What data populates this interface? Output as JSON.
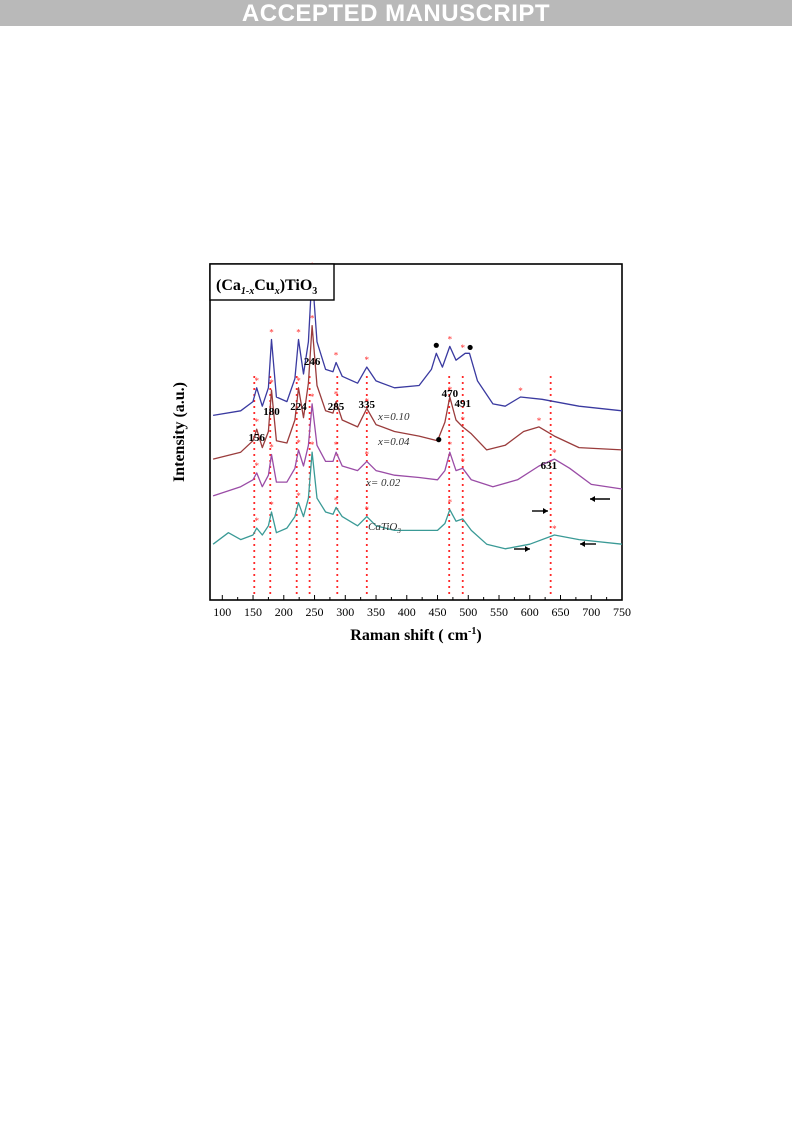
{
  "header": {
    "banner": "ACCEPTED MANUSCRIPT"
  },
  "chart_data": {
    "type": "line",
    "title": "",
    "inset_label": {
      "main1": "(Ca",
      "sub1": "1-x",
      "main2": "Cu",
      "sub2": "x",
      "main3": ")TiO",
      "sub3": "3"
    },
    "xlabel": "Raman shift ( cm",
    "xlabel_sup": "-1",
    "xlabel_end": ")",
    "ylabel": "Intensity (a.u.)",
    "xlim": [
      80,
      750
    ],
    "xticks": [
      100,
      150,
      200,
      250,
      300,
      350,
      400,
      450,
      500,
      550,
      600,
      650,
      700,
      750
    ],
    "grid": false,
    "series": [
      {
        "name": "x=0.10",
        "color": "#3a3aa0",
        "offset": 0.62,
        "points": [
          [
            85,
            0.0
          ],
          [
            130,
            0.02
          ],
          [
            150,
            0.06
          ],
          [
            156,
            0.12
          ],
          [
            165,
            0.04
          ],
          [
            175,
            0.12
          ],
          [
            180,
            0.33
          ],
          [
            188,
            0.08
          ],
          [
            205,
            0.06
          ],
          [
            218,
            0.16
          ],
          [
            224,
            0.33
          ],
          [
            232,
            0.18
          ],
          [
            240,
            0.32
          ],
          [
            246,
            0.62
          ],
          [
            254,
            0.32
          ],
          [
            268,
            0.2
          ],
          [
            280,
            0.19
          ],
          [
            285,
            0.23
          ],
          [
            295,
            0.17
          ],
          [
            320,
            0.14
          ],
          [
            335,
            0.21
          ],
          [
            350,
            0.15
          ],
          [
            380,
            0.12
          ],
          [
            420,
            0.13
          ],
          [
            440,
            0.2
          ],
          [
            448,
            0.27
          ],
          [
            458,
            0.21
          ],
          [
            470,
            0.3
          ],
          [
            480,
            0.24
          ],
          [
            495,
            0.27
          ],
          [
            502,
            0.27
          ],
          [
            515,
            0.15
          ],
          [
            540,
            0.05
          ],
          [
            560,
            0.04
          ],
          [
            585,
            0.08
          ],
          [
            620,
            0.07
          ],
          [
            680,
            0.04
          ],
          [
            750,
            0.02
          ]
        ]
      },
      {
        "name": "x=0.04",
        "color": "#9a3c3c",
        "offset": 0.43,
        "points": [
          [
            85,
            0.0
          ],
          [
            130,
            0.03
          ],
          [
            150,
            0.08
          ],
          [
            156,
            0.13
          ],
          [
            165,
            0.05
          ],
          [
            175,
            0.12
          ],
          [
            180,
            0.3
          ],
          [
            188,
            0.08
          ],
          [
            205,
            0.07
          ],
          [
            218,
            0.17
          ],
          [
            224,
            0.31
          ],
          [
            232,
            0.18
          ],
          [
            240,
            0.33
          ],
          [
            246,
            0.58
          ],
          [
            254,
            0.32
          ],
          [
            268,
            0.21
          ],
          [
            280,
            0.2
          ],
          [
            285,
            0.25
          ],
          [
            295,
            0.17
          ],
          [
            320,
            0.14
          ],
          [
            335,
            0.22
          ],
          [
            350,
            0.15
          ],
          [
            380,
            0.12
          ],
          [
            420,
            0.1
          ],
          [
            450,
            0.08
          ],
          [
            462,
            0.16
          ],
          [
            470,
            0.27
          ],
          [
            480,
            0.17
          ],
          [
            491,
            0.14
          ],
          [
            505,
            0.11
          ],
          [
            530,
            0.04
          ],
          [
            560,
            0.06
          ],
          [
            590,
            0.12
          ],
          [
            615,
            0.14
          ],
          [
            640,
            0.1
          ],
          [
            680,
            0.05
          ],
          [
            750,
            0.04
          ]
        ]
      },
      {
        "name": "x= 0.02",
        "color": "#9a4ca6",
        "offset": 0.27,
        "points": [
          [
            85,
            0.0
          ],
          [
            130,
            0.04
          ],
          [
            150,
            0.07
          ],
          [
            156,
            0.1
          ],
          [
            165,
            0.04
          ],
          [
            175,
            0.09
          ],
          [
            180,
            0.18
          ],
          [
            188,
            0.06
          ],
          [
            205,
            0.06
          ],
          [
            218,
            0.12
          ],
          [
            224,
            0.2
          ],
          [
            232,
            0.13
          ],
          [
            240,
            0.22
          ],
          [
            246,
            0.4
          ],
          [
            254,
            0.22
          ],
          [
            268,
            0.15
          ],
          [
            280,
            0.15
          ],
          [
            285,
            0.19
          ],
          [
            295,
            0.13
          ],
          [
            320,
            0.11
          ],
          [
            335,
            0.15
          ],
          [
            350,
            0.11
          ],
          [
            380,
            0.09
          ],
          [
            420,
            0.08
          ],
          [
            450,
            0.07
          ],
          [
            462,
            0.11
          ],
          [
            470,
            0.19
          ],
          [
            480,
            0.11
          ],
          [
            491,
            0.12
          ],
          [
            505,
            0.07
          ],
          [
            540,
            0.04
          ],
          [
            580,
            0.07
          ],
          [
            615,
            0.13
          ],
          [
            640,
            0.16
          ],
          [
            665,
            0.12
          ],
          [
            700,
            0.05
          ],
          [
            750,
            0.03
          ]
        ]
      },
      {
        "name": "CaTiO",
        "name_sub": "3",
        "color": "#3a9a96",
        "offset": 0.06,
        "points": [
          [
            85,
            0.0
          ],
          [
            110,
            0.05
          ],
          [
            130,
            0.02
          ],
          [
            150,
            0.04
          ],
          [
            156,
            0.07
          ],
          [
            165,
            0.04
          ],
          [
            175,
            0.08
          ],
          [
            180,
            0.14
          ],
          [
            188,
            0.05
          ],
          [
            205,
            0.07
          ],
          [
            218,
            0.12
          ],
          [
            224,
            0.18
          ],
          [
            232,
            0.12
          ],
          [
            240,
            0.2
          ],
          [
            246,
            0.4
          ],
          [
            254,
            0.2
          ],
          [
            268,
            0.14
          ],
          [
            280,
            0.13
          ],
          [
            285,
            0.16
          ],
          [
            295,
            0.12
          ],
          [
            320,
            0.08
          ],
          [
            335,
            0.12
          ],
          [
            350,
            0.08
          ],
          [
            380,
            0.06
          ],
          [
            420,
            0.06
          ],
          [
            450,
            0.06
          ],
          [
            462,
            0.09
          ],
          [
            470,
            0.15
          ],
          [
            480,
            0.1
          ],
          [
            491,
            0.11
          ],
          [
            505,
            0.06
          ],
          [
            530,
            0.0
          ],
          [
            560,
            -0.02
          ],
          [
            600,
            0.0
          ],
          [
            640,
            0.04
          ],
          [
            680,
            0.02
          ],
          [
            750,
            0.0
          ]
        ]
      }
    ],
    "peak_labels": [
      {
        "x": 156,
        "text": "156"
      },
      {
        "x": 180,
        "text": "180"
      },
      {
        "x": 224,
        "text": "224"
      },
      {
        "x": 246,
        "text": "246"
      },
      {
        "x": 285,
        "text": "285"
      },
      {
        "x": 335,
        "text": "335"
      },
      {
        "x": 470,
        "text": "470"
      },
      {
        "x": 491,
        "text": "491"
      },
      {
        "x": 631,
        "text": "631"
      }
    ],
    "marker_lines": [
      152,
      178,
      221,
      242,
      287,
      335,
      469,
      491,
      634
    ],
    "impurity_markers": [
      [
        448,
        0.1
      ],
      [
        503,
        0.1
      ],
      [
        452,
        0.04
      ]
    ],
    "star_color": "#ff2a2a"
  }
}
